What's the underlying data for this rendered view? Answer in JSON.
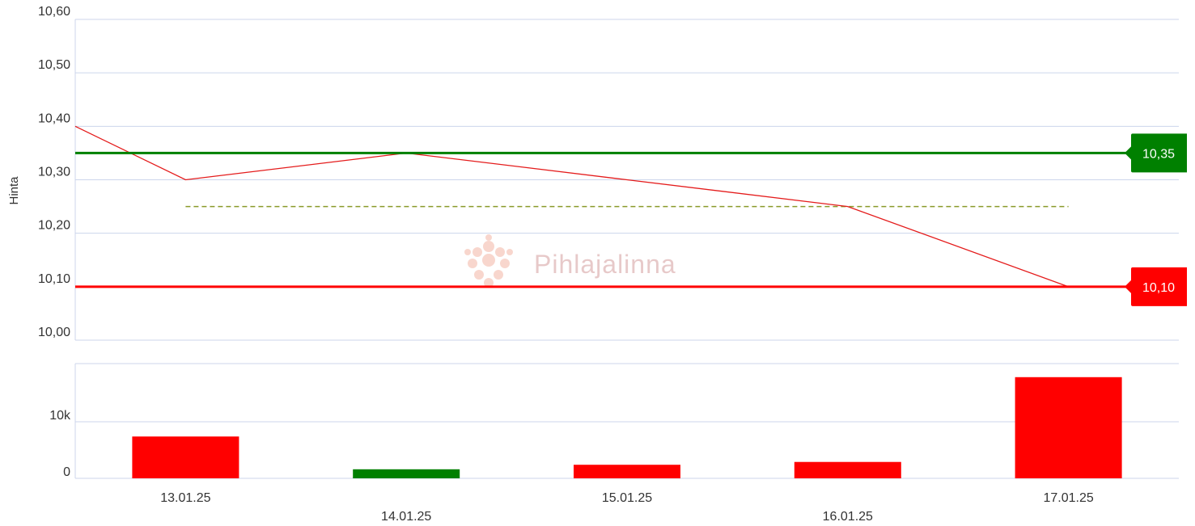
{
  "chart_data": {
    "type": "stock",
    "y_label": "Hinta",
    "watermark": "Pihlajalinna",
    "categories": [
      "13.01.25",
      "14.01.25",
      "15.01.25",
      "16.01.25",
      "17.01.25"
    ],
    "price": {
      "start_value": 10.4,
      "values": [
        10.3,
        10.35,
        10.3,
        10.25,
        10.1
      ],
      "color": "#e41b1b"
    },
    "high": {
      "value": 10.35,
      "label": "10,35",
      "color": "#008000"
    },
    "low": {
      "value": 10.1,
      "label": "10,10",
      "color": "#ff0000"
    },
    "average": {
      "value": 10.25,
      "color": "#8a9a2a"
    },
    "ylim": [
      10.0,
      10.6
    ],
    "yticks": [
      {
        "value": 10.0,
        "label": "10,00"
      },
      {
        "value": 10.1,
        "label": "10,10"
      },
      {
        "value": 10.2,
        "label": "10,20"
      },
      {
        "value": 10.3,
        "label": "10,30"
      },
      {
        "value": 10.4,
        "label": "10,40"
      },
      {
        "value": 10.5,
        "label": "10,50"
      },
      {
        "value": 10.6,
        "label": "10,60"
      }
    ],
    "volume": {
      "values": [
        7400,
        1600,
        2400,
        2900,
        17900
      ],
      "colors": [
        "#ff0000",
        "#008000",
        "#ff0000",
        "#ff0000",
        "#ff0000"
      ]
    },
    "y2lim": [
      0,
      20300
    ],
    "y2ticks": [
      0,
      {
        "value": 10000,
        "label": "10k"
      }
    ],
    "grid": true
  }
}
